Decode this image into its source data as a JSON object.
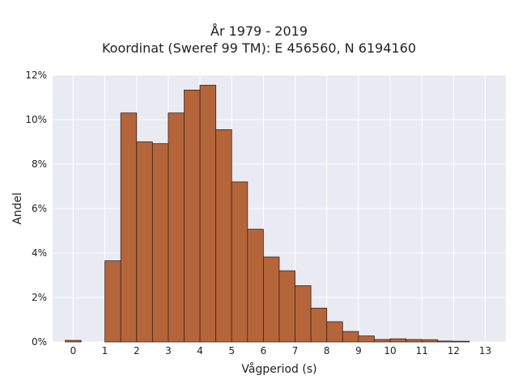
{
  "title_line1": "År 1979 - 2019",
  "title_line2": "Koordinat (Sweref 99 TM): E 456560, N 6194160",
  "chart_data": {
    "type": "bar",
    "xlabel": "Vågperiod (s)",
    "ylabel": "Andel",
    "xlim": [
      -0.65,
      13.65
    ],
    "ylim": [
      0,
      12
    ],
    "x_ticks": [
      0,
      1,
      2,
      3,
      4,
      5,
      6,
      7,
      8,
      9,
      10,
      11,
      12,
      13
    ],
    "y_ticks": [
      0,
      2,
      4,
      6,
      8,
      10,
      12
    ],
    "y_tick_labels": [
      "0%",
      "2%",
      "4%",
      "6%",
      "8%",
      "10%",
      "12%"
    ],
    "bin_width": 0.5,
    "bin_starts": [
      -0.25,
      1.0,
      1.5,
      2.0,
      2.5,
      3.0,
      3.5,
      4.0,
      4.5,
      5.0,
      5.5,
      6.0,
      6.5,
      7.0,
      7.5,
      8.0,
      8.5,
      9.0,
      9.5,
      10.0,
      10.5,
      11.0,
      11.5,
      12.0
    ],
    "values": [
      0.07,
      3.65,
      10.3,
      9.0,
      8.92,
      10.3,
      11.33,
      11.55,
      9.55,
      7.2,
      5.07,
      3.82,
      3.2,
      2.53,
      1.52,
      0.91,
      0.47,
      0.27,
      0.11,
      0.14,
      0.11,
      0.1,
      0.04,
      0.03
    ],
    "bar_color": "#b5653a",
    "edge_color": "#3a2418",
    "background": "#eaeaf2",
    "grid": true
  }
}
